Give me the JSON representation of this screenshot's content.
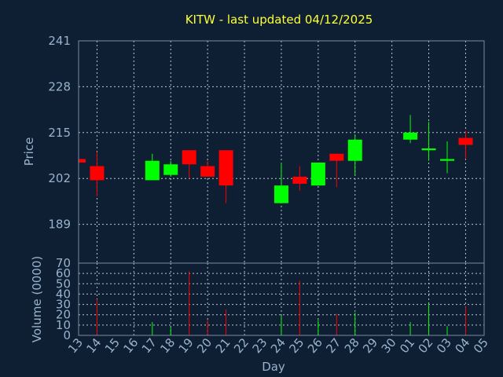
{
  "title": "KITW - last updated 04/12/2025",
  "colors": {
    "background": "#0e1f33",
    "frame": "#7a8aa0",
    "grid": "#b8c4d4",
    "text": "#99b3cc",
    "title": "#ffff33",
    "up": "#00ff00",
    "down": "#ff0000"
  },
  "chart_data": [
    {
      "type": "candlestick",
      "ylabel": "Price",
      "ylim": [
        178,
        241
      ],
      "yticks": [
        241,
        228,
        215,
        202,
        189
      ],
      "grid": true,
      "categories": [
        "13",
        "14",
        "15",
        "16",
        "17",
        "18",
        "19",
        "20",
        "21",
        "22",
        "23",
        "24",
        "25",
        "26",
        "27",
        "28",
        "29",
        "30",
        "01",
        "02",
        "03",
        "04",
        "05"
      ],
      "candles": [
        {
          "day": "13",
          "open": 207.5,
          "close": 206.5,
          "high": 207.5,
          "low": 206.5
        },
        {
          "day": "14",
          "open": 205.5,
          "close": 201.5,
          "high": 209.5,
          "low": 197.0
        },
        {
          "day": "17",
          "open": 201.5,
          "close": 207.0,
          "high": 209.0,
          "low": 201.5
        },
        {
          "day": "18",
          "open": 203.0,
          "close": 206.0,
          "high": 207.0,
          "low": 202.5
        },
        {
          "day": "19",
          "open": 210.0,
          "close": 206.0,
          "high": 210.0,
          "low": 202.0
        },
        {
          "day": "20",
          "open": 205.5,
          "close": 202.5,
          "high": 207.0,
          "low": 202.5
        },
        {
          "day": "21",
          "open": 210.0,
          "close": 200.0,
          "high": 210.0,
          "low": 195.0
        },
        {
          "day": "24",
          "open": 195.0,
          "close": 200.0,
          "high": 206.5,
          "low": 195.0
        },
        {
          "day": "25",
          "open": 202.5,
          "close": 200.5,
          "high": 205.5,
          "low": 198.5
        },
        {
          "day": "26",
          "open": 200.0,
          "close": 206.5,
          "high": 206.5,
          "low": 200.0
        },
        {
          "day": "27",
          "open": 209.0,
          "close": 207.0,
          "high": 209.0,
          "low": 199.5
        },
        {
          "day": "28",
          "open": 207.0,
          "close": 213.0,
          "high": 214.5,
          "low": 203.0
        },
        {
          "day": "01",
          "open": 213.0,
          "close": 215.0,
          "high": 220.0,
          "low": 212.0
        },
        {
          "day": "02",
          "open": 210.0,
          "close": 210.5,
          "high": 218.0,
          "low": 207.0
        },
        {
          "day": "03",
          "open": 207.0,
          "close": 207.5,
          "high": 212.5,
          "low": 203.5
        },
        {
          "day": "04",
          "open": 213.5,
          "close": 211.5,
          "high": 215.5,
          "low": 207.5
        }
      ]
    },
    {
      "type": "bar",
      "ylabel": "Volume (0000)",
      "xlabel": "Day",
      "ylim": [
        0,
        70
      ],
      "yticks": [
        70,
        60,
        50,
        40,
        30,
        20,
        10,
        0
      ],
      "grid": true,
      "categories": [
        "13",
        "14",
        "15",
        "16",
        "17",
        "18",
        "19",
        "20",
        "21",
        "22",
        "23",
        "24",
        "25",
        "26",
        "27",
        "28",
        "29",
        "30",
        "01",
        "02",
        "03",
        "04",
        "05"
      ],
      "bars": [
        {
          "day": "13",
          "value": 0,
          "direction": "down"
        },
        {
          "day": "14",
          "value": 35,
          "direction": "down"
        },
        {
          "day": "17",
          "value": 13,
          "direction": "up"
        },
        {
          "day": "18",
          "value": 8,
          "direction": "up"
        },
        {
          "day": "19",
          "value": 62,
          "direction": "down"
        },
        {
          "day": "20",
          "value": 15,
          "direction": "down"
        },
        {
          "day": "21",
          "value": 25,
          "direction": "down"
        },
        {
          "day": "24",
          "value": 19,
          "direction": "up"
        },
        {
          "day": "25",
          "value": 53,
          "direction": "down"
        },
        {
          "day": "26",
          "value": 15,
          "direction": "up"
        },
        {
          "day": "27",
          "value": 21,
          "direction": "down"
        },
        {
          "day": "28",
          "value": 22,
          "direction": "up"
        },
        {
          "day": "01",
          "value": 13,
          "direction": "up"
        },
        {
          "day": "02",
          "value": 31,
          "direction": "up"
        },
        {
          "day": "03",
          "value": 9,
          "direction": "up"
        },
        {
          "day": "04",
          "value": 28,
          "direction": "down"
        }
      ]
    }
  ]
}
